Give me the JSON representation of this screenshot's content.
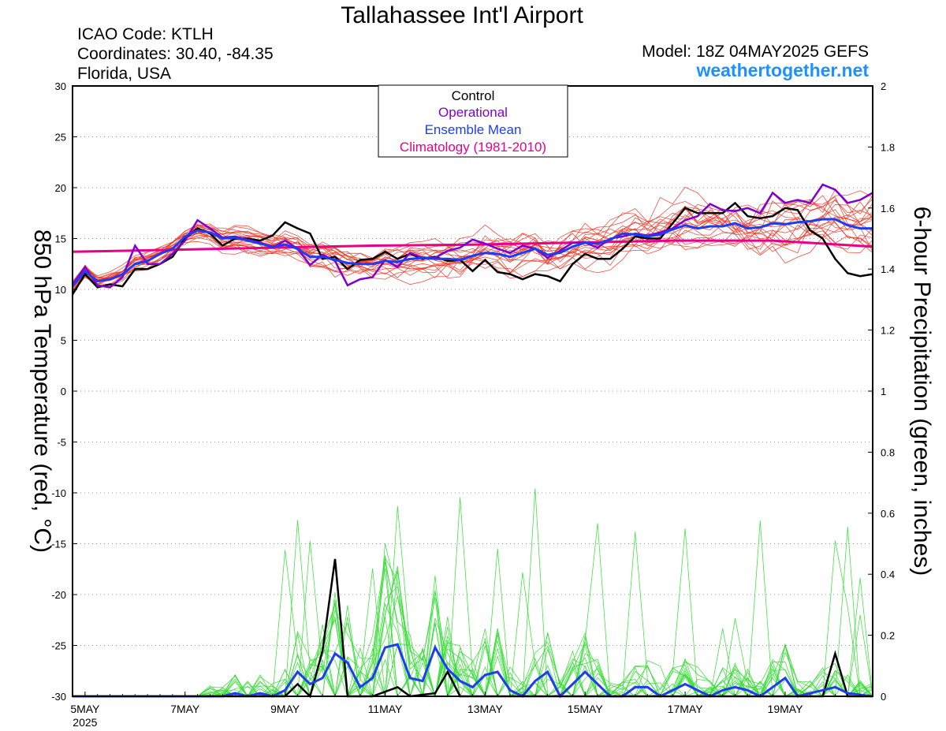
{
  "header": {
    "title": "Tallahassee Int'l Airport",
    "icao": "ICAO Code: KTLH",
    "coords": "Coordinates: 30.40, -84.35",
    "location": "Florida, USA",
    "model": "Model: 18Z 04MAY2025 GEFS",
    "site": "weathertogether.net"
  },
  "legend": {
    "items": [
      {
        "label": "Control",
        "color": "#000000"
      },
      {
        "label": "Operational",
        "color": "#8000d0"
      },
      {
        "label": "Ensemble Mean",
        "color": "#1e3cf0"
      },
      {
        "label": "Climatology (1981-2010)",
        "color": "#e8008a"
      }
    ]
  },
  "chart_data": {
    "type": "line",
    "ylabel_left": "850 hPa Temperature (red, °C)",
    "ylabel_right": "6-hour Precipitation (green, inches)",
    "x_unit": "days after 2025-05-04 18Z",
    "xlim": [
      0.0,
      16.0
    ],
    "ylim_left": [
      -30,
      30
    ],
    "ylim_right": [
      0,
      2
    ],
    "left_ticks": [
      30,
      25,
      20,
      15,
      10,
      5,
      0,
      -5,
      -10,
      -15,
      -20,
      -25,
      -30
    ],
    "right_ticks": [
      "2",
      "1.8",
      "1.6",
      "1.4",
      "1.2",
      "1",
      "0.8",
      "0.6",
      "0.4",
      "0.2",
      "0"
    ],
    "x_ticks": [
      {
        "x": 0.25,
        "label": "5MAY",
        "sub": "2025"
      },
      {
        "x": 2.25,
        "label": "7MAY"
      },
      {
        "x": 4.25,
        "label": "9MAY"
      },
      {
        "x": 6.25,
        "label": "11MAY"
      },
      {
        "x": 8.25,
        "label": "13MAY"
      },
      {
        "x": 10.25,
        "label": "15MAY"
      },
      {
        "x": 12.25,
        "label": "17MAY"
      },
      {
        "x": 14.25,
        "label": "19MAY"
      }
    ],
    "grid": "dotted horizontal",
    "colors": {
      "member_temp": "#ee3322",
      "member_precip": "#33dd33",
      "control": "#000000",
      "operational": "#8000d0",
      "mean": "#1e3cf0",
      "climatology": "#e8008a"
    },
    "temperature": {
      "control": [
        [
          0.0,
          9.5
        ],
        [
          0.25,
          11.5
        ],
        [
          0.5,
          10.2
        ],
        [
          0.75,
          10.5
        ],
        [
          1.0,
          10.3
        ],
        [
          1.25,
          12.0
        ],
        [
          1.5,
          12.0
        ],
        [
          1.75,
          12.5
        ],
        [
          2.0,
          13.2
        ],
        [
          2.25,
          15.0
        ],
        [
          2.5,
          16.0
        ],
        [
          2.75,
          15.5
        ],
        [
          3.0,
          14.3
        ],
        [
          3.25,
          15.0
        ],
        [
          3.5,
          15.0
        ],
        [
          3.75,
          14.8
        ],
        [
          4.0,
          15.3
        ],
        [
          4.25,
          16.6
        ],
        [
          4.5,
          16.0
        ],
        [
          4.75,
          15.5
        ],
        [
          5.0,
          13.0
        ],
        [
          5.25,
          13.2
        ],
        [
          5.5,
          12.0
        ],
        [
          5.75,
          12.9
        ],
        [
          6.0,
          13.0
        ],
        [
          6.25,
          13.7
        ],
        [
          6.5,
          13.0
        ],
        [
          6.75,
          13.5
        ],
        [
          7.0,
          13.0
        ],
        [
          7.25,
          13.2
        ],
        [
          7.5,
          12.8
        ],
        [
          7.75,
          12.9
        ],
        [
          8.0,
          11.8
        ],
        [
          8.25,
          12.9
        ],
        [
          8.5,
          11.7
        ],
        [
          8.75,
          11.5
        ],
        [
          9.0,
          11.0
        ],
        [
          9.25,
          11.5
        ],
        [
          9.5,
          11.3
        ],
        [
          9.75,
          10.8
        ],
        [
          10.0,
          12.5
        ],
        [
          10.25,
          13.5
        ],
        [
          10.5,
          13.0
        ],
        [
          10.75,
          13.0
        ],
        [
          11.0,
          14.0
        ],
        [
          11.25,
          15.2
        ],
        [
          11.5,
          15.0
        ],
        [
          11.75,
          15.0
        ],
        [
          12.0,
          16.5
        ],
        [
          12.25,
          18.0
        ],
        [
          12.5,
          17.5
        ],
        [
          12.75,
          17.5
        ],
        [
          13.0,
          17.5
        ],
        [
          13.25,
          18.5
        ],
        [
          13.5,
          17.2
        ],
        [
          13.75,
          17.0
        ],
        [
          14.0,
          17.2
        ],
        [
          14.25,
          18.0
        ],
        [
          14.5,
          17.8
        ],
        [
          14.75,
          15.8
        ],
        [
          15.0,
          15.0
        ],
        [
          15.25,
          13.0
        ],
        [
          15.5,
          11.6
        ],
        [
          15.75,
          11.3
        ],
        [
          16.0,
          11.5
        ]
      ],
      "operational": [
        [
          0.0,
          10.5
        ],
        [
          0.25,
          12.2
        ],
        [
          0.5,
          10.4
        ],
        [
          0.75,
          10.2
        ],
        [
          1.0,
          11.2
        ],
        [
          1.25,
          14.3
        ],
        [
          1.5,
          12.5
        ],
        [
          1.75,
          12.5
        ],
        [
          2.0,
          13.5
        ],
        [
          2.25,
          14.8
        ],
        [
          2.5,
          16.8
        ],
        [
          2.75,
          16.0
        ],
        [
          3.0,
          15.1
        ],
        [
          3.25,
          15.2
        ],
        [
          3.5,
          14.9
        ],
        [
          3.75,
          14.6
        ],
        [
          4.0,
          14.1
        ],
        [
          4.25,
          14.8
        ],
        [
          4.5,
          14.0
        ],
        [
          4.75,
          12.4
        ],
        [
          5.0,
          13.4
        ],
        [
          5.25,
          12.8
        ],
        [
          5.5,
          10.4
        ],
        [
          5.75,
          11.0
        ],
        [
          6.0,
          11.2
        ],
        [
          6.25,
          12.9
        ],
        [
          6.5,
          12.2
        ],
        [
          6.75,
          13.6
        ],
        [
          7.0,
          13.1
        ],
        [
          7.25,
          13.1
        ],
        [
          7.5,
          13.8
        ],
        [
          7.75,
          14.1
        ],
        [
          8.0,
          14.9
        ],
        [
          8.25,
          14.5
        ],
        [
          8.5,
          14.0
        ],
        [
          8.75,
          13.6
        ],
        [
          9.0,
          14.3
        ],
        [
          9.25,
          14.0
        ],
        [
          9.5,
          13.1
        ],
        [
          9.75,
          13.8
        ],
        [
          10.0,
          14.6
        ],
        [
          10.25,
          14.6
        ],
        [
          10.5,
          14.1
        ],
        [
          10.75,
          15.0
        ],
        [
          11.0,
          15.2
        ],
        [
          11.25,
          15.5
        ],
        [
          11.5,
          15.3
        ],
        [
          11.75,
          15.6
        ],
        [
          12.0,
          16.0
        ],
        [
          12.25,
          16.8
        ],
        [
          12.5,
          17.2
        ],
        [
          12.75,
          18.4
        ],
        [
          13.0,
          17.8
        ],
        [
          13.25,
          17.7
        ],
        [
          13.5,
          18.0
        ],
        [
          13.75,
          17.5
        ],
        [
          14.0,
          19.5
        ],
        [
          14.25,
          18.5
        ],
        [
          14.5,
          18.8
        ],
        [
          14.75,
          18.5
        ],
        [
          15.0,
          20.3
        ],
        [
          15.25,
          19.8
        ],
        [
          15.5,
          18.5
        ],
        [
          15.75,
          18.8
        ],
        [
          16.0,
          19.5
        ]
      ],
      "mean": [
        [
          0.0,
          10.3
        ],
        [
          0.25,
          11.8
        ],
        [
          0.5,
          10.8
        ],
        [
          0.75,
          11.0
        ],
        [
          1.0,
          11.5
        ],
        [
          1.25,
          12.5
        ],
        [
          1.5,
          12.8
        ],
        [
          1.75,
          13.5
        ],
        [
          2.0,
          14.0
        ],
        [
          2.25,
          15.2
        ],
        [
          2.5,
          15.8
        ],
        [
          2.75,
          15.6
        ],
        [
          3.0,
          15.0
        ],
        [
          3.25,
          15.1
        ],
        [
          3.5,
          14.8
        ],
        [
          3.75,
          14.5
        ],
        [
          4.0,
          14.2
        ],
        [
          4.25,
          14.4
        ],
        [
          4.5,
          14.0
        ],
        [
          4.75,
          13.2
        ],
        [
          5.0,
          13.2
        ],
        [
          5.25,
          12.9
        ],
        [
          5.5,
          12.6
        ],
        [
          5.75,
          12.5
        ],
        [
          6.0,
          12.5
        ],
        [
          6.25,
          12.8
        ],
        [
          6.5,
          12.7
        ],
        [
          6.75,
          13.0
        ],
        [
          7.0,
          13.1
        ],
        [
          7.25,
          13.0
        ],
        [
          7.5,
          13.0
        ],
        [
          7.75,
          12.9
        ],
        [
          8.0,
          13.3
        ],
        [
          8.25,
          13.6
        ],
        [
          8.5,
          13.5
        ],
        [
          8.75,
          13.2
        ],
        [
          9.0,
          13.6
        ],
        [
          9.25,
          14.0
        ],
        [
          9.5,
          13.4
        ],
        [
          9.75,
          13.6
        ],
        [
          10.0,
          14.2
        ],
        [
          10.25,
          14.6
        ],
        [
          10.5,
          14.5
        ],
        [
          10.75,
          14.9
        ],
        [
          11.0,
          15.5
        ],
        [
          11.25,
          15.4
        ],
        [
          11.5,
          15.2
        ],
        [
          11.75,
          15.4
        ],
        [
          12.0,
          15.9
        ],
        [
          12.25,
          16.3
        ],
        [
          12.5,
          16.0
        ],
        [
          12.75,
          16.2
        ],
        [
          13.0,
          16.2
        ],
        [
          13.25,
          16.5
        ],
        [
          13.5,
          16.0
        ],
        [
          13.75,
          16.1
        ],
        [
          14.0,
          16.5
        ],
        [
          14.25,
          16.4
        ],
        [
          14.5,
          16.6
        ],
        [
          14.75,
          16.7
        ],
        [
          15.0,
          16.9
        ],
        [
          15.25,
          16.9
        ],
        [
          15.5,
          16.3
        ],
        [
          15.75,
          16.0
        ],
        [
          16.0,
          16.0
        ]
      ],
      "climatology": [
        [
          0.0,
          13.7
        ],
        [
          2.0,
          13.9
        ],
        [
          4.0,
          14.1
        ],
        [
          6.0,
          14.3
        ],
        [
          8.0,
          14.4
        ],
        [
          10.0,
          14.6
        ],
        [
          12.0,
          14.8
        ],
        [
          14.0,
          14.8
        ],
        [
          16.0,
          14.2
        ]
      ]
    },
    "precipitation": {
      "control": [
        [
          0.0,
          0
        ],
        [
          4.25,
          0
        ],
        [
          4.5,
          0.04
        ],
        [
          4.75,
          0
        ],
        [
          5.0,
          0.15
        ],
        [
          5.25,
          0.45
        ],
        [
          5.5,
          0
        ],
        [
          6.0,
          0
        ],
        [
          6.5,
          0.03
        ],
        [
          6.75,
          0
        ],
        [
          7.25,
          0.01
        ],
        [
          7.5,
          0.08
        ],
        [
          7.75,
          0
        ],
        [
          10.0,
          0
        ],
        [
          15.0,
          0
        ],
        [
          15.25,
          0.14
        ],
        [
          15.5,
          0
        ],
        [
          16.0,
          0
        ]
      ],
      "mean": [
        [
          0.0,
          0
        ],
        [
          3.0,
          0
        ],
        [
          3.25,
          0.01
        ],
        [
          3.5,
          0
        ],
        [
          3.75,
          0.01
        ],
        [
          4.0,
          0
        ],
        [
          4.25,
          0.02
        ],
        [
          4.5,
          0.08
        ],
        [
          4.75,
          0.04
        ],
        [
          5.0,
          0.06
        ],
        [
          5.25,
          0.14
        ],
        [
          5.5,
          0.11
        ],
        [
          5.75,
          0.03
        ],
        [
          6.0,
          0.06
        ],
        [
          6.25,
          0.16
        ],
        [
          6.5,
          0.17
        ],
        [
          6.75,
          0.06
        ],
        [
          7.0,
          0.05
        ],
        [
          7.25,
          0.16
        ],
        [
          7.5,
          0.09
        ],
        [
          7.75,
          0.05
        ],
        [
          8.0,
          0.03
        ],
        [
          8.25,
          0.07
        ],
        [
          8.5,
          0.08
        ],
        [
          8.75,
          0.02
        ],
        [
          9.0,
          0.0
        ],
        [
          9.25,
          0.05
        ],
        [
          9.5,
          0.08
        ],
        [
          9.75,
          0.0
        ],
        [
          10.0,
          0.04
        ],
        [
          10.25,
          0.08
        ],
        [
          10.5,
          0.04
        ],
        [
          10.75,
          0.0
        ],
        [
          11.0,
          0.0
        ],
        [
          11.25,
          0.03
        ],
        [
          11.5,
          0.03
        ],
        [
          11.75,
          0.0
        ],
        [
          12.0,
          0.02
        ],
        [
          12.25,
          0.04
        ],
        [
          12.5,
          0.02
        ],
        [
          12.75,
          0.0
        ],
        [
          13.0,
          0.02
        ],
        [
          13.25,
          0.03
        ],
        [
          13.5,
          0.02
        ],
        [
          13.75,
          0.0
        ],
        [
          14.0,
          0.03
        ],
        [
          14.25,
          0.06
        ],
        [
          14.5,
          0.0
        ],
        [
          14.75,
          0.01
        ],
        [
          15.0,
          0.02
        ],
        [
          15.25,
          0.03
        ],
        [
          15.5,
          0.01
        ],
        [
          16.0,
          0.0
        ]
      ]
    }
  }
}
